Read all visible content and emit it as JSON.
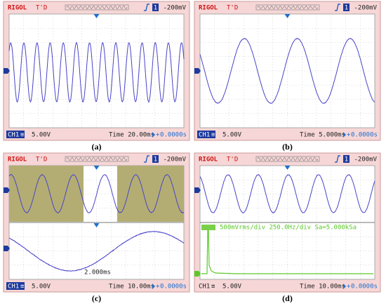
{
  "panels": [
    {
      "caption": "(a)",
      "brand": "RIGOL",
      "status": "T'D",
      "trigger_channel": "1",
      "trigger": "-200mV",
      "channel": "CH1",
      "volts": "5.00V",
      "time": "Time 20.00ms",
      "offset": "0.0000s"
    },
    {
      "caption": "(b)",
      "brand": "RIGOL",
      "status": "T'D",
      "trigger_channel": "1",
      "trigger": "-200mV",
      "channel": "CH1",
      "volts": "5.00V",
      "time": "Time 5.000ms",
      "offset": "0.0000s"
    },
    {
      "caption": "(c)",
      "brand": "RIGOL",
      "status": "T'D",
      "trigger_channel": "1",
      "trigger": "-200mV",
      "channel": "CH1",
      "volts": "5.00V",
      "time": "Time 10.00ms",
      "offset": "0.0000s",
      "zoom_label": "2.000ms"
    },
    {
      "caption": "(d)",
      "brand": "RIGOL",
      "status": "T'D",
      "trigger_channel": "1",
      "trigger": "-200mV",
      "channel": "CH1",
      "volts": "5.00V",
      "time": "Time 10.00ms",
      "offset": "0.0000s",
      "fft_label": "500mVrms/div 250.0Hz/div Sa=5.000kSa"
    }
  ]
}
